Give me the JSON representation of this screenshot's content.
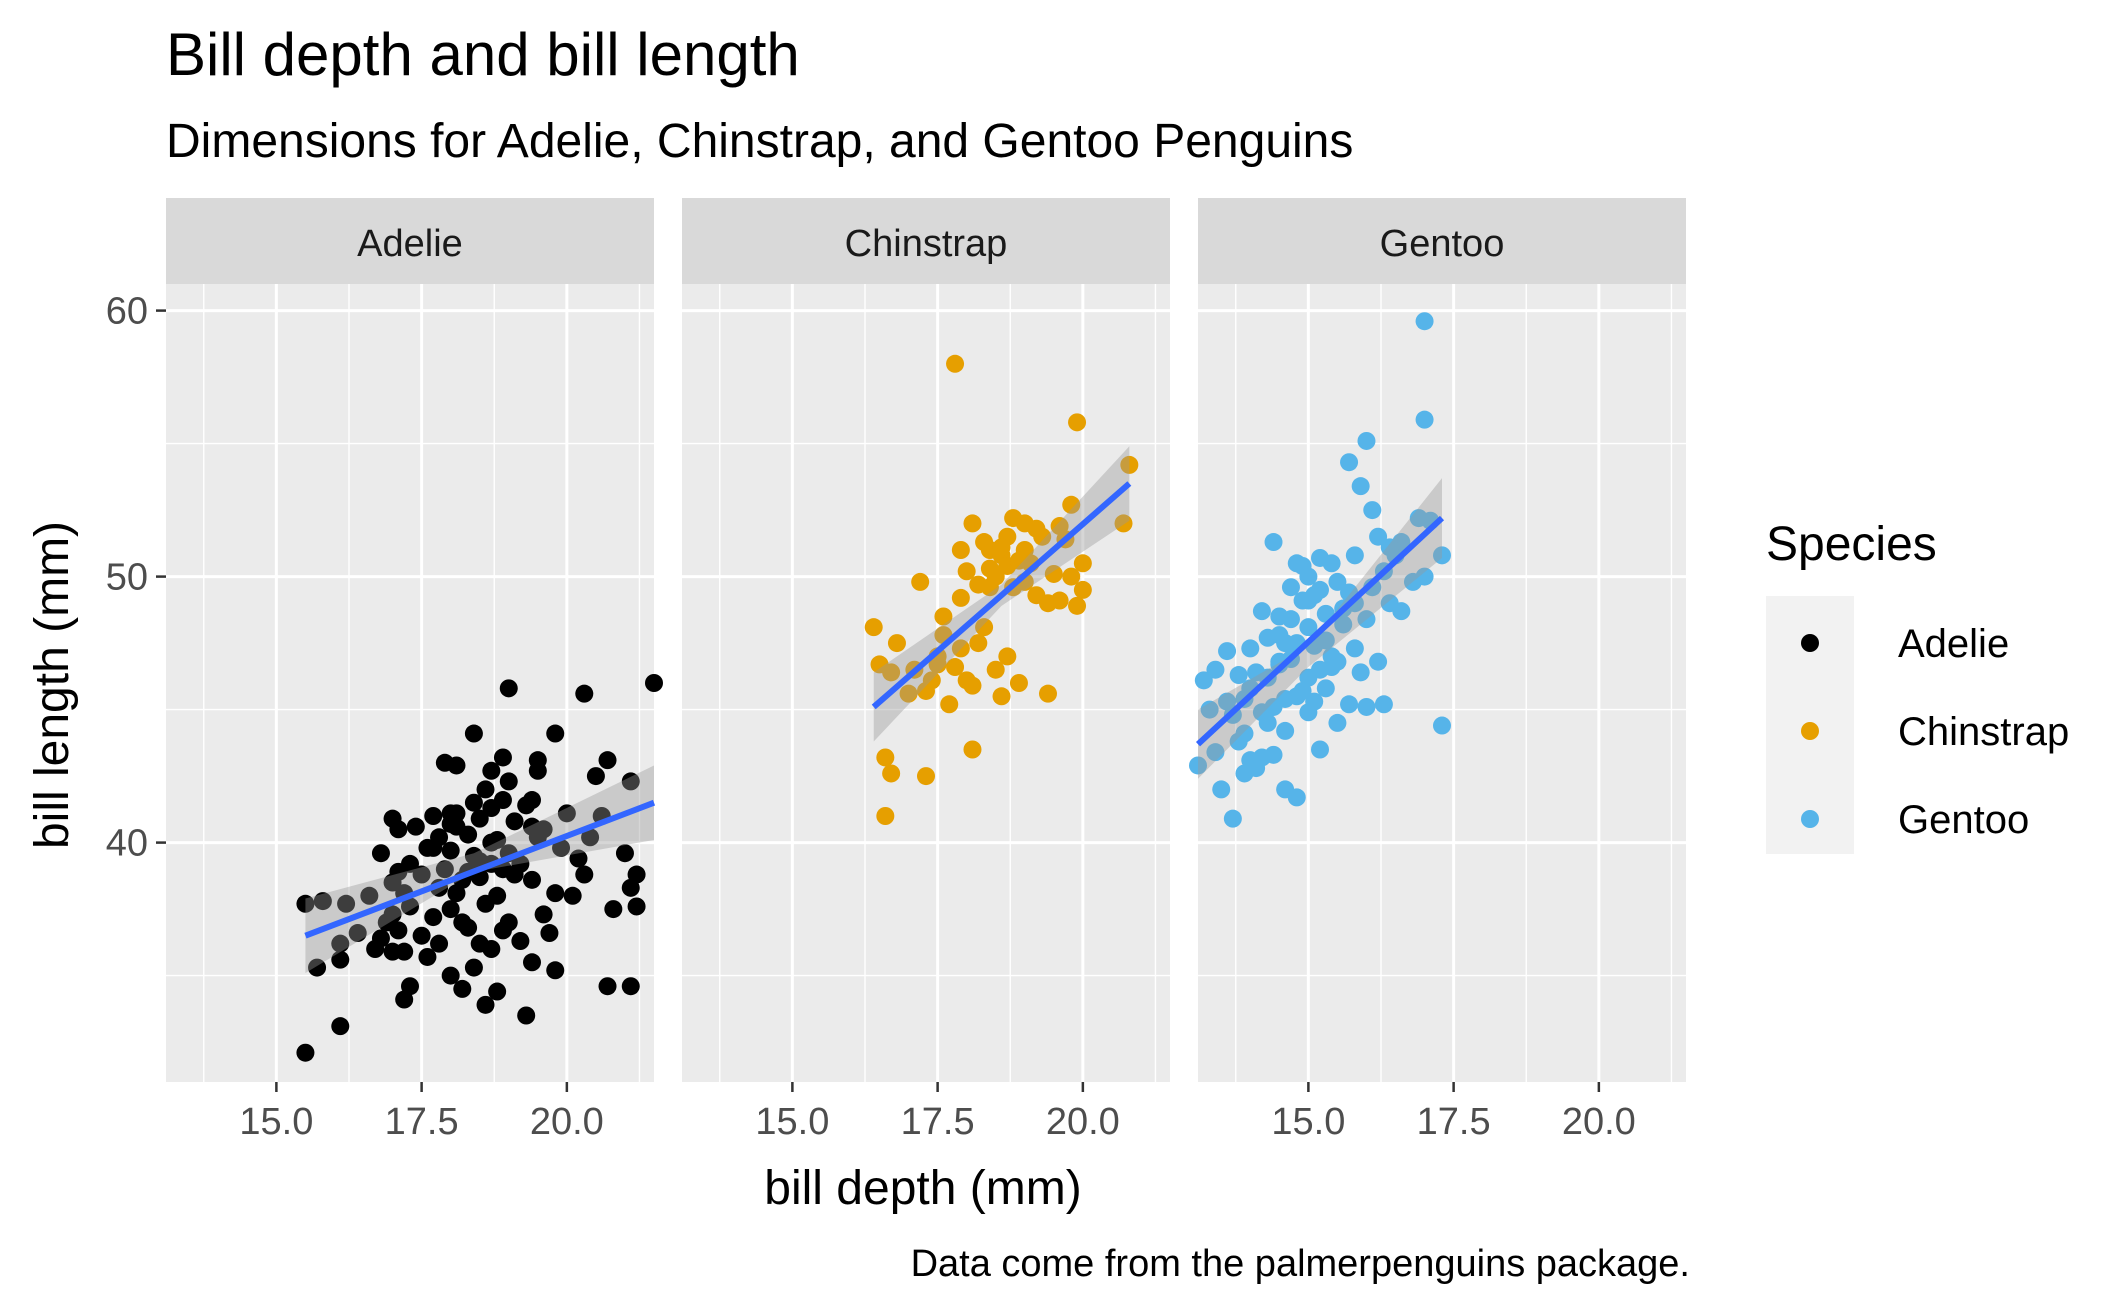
{
  "chart_data": {
    "type": "scatter",
    "title": "Bill depth and bill length",
    "subtitle": "Dimensions for Adelie, Chinstrap, and Gentoo Penguins",
    "caption": "Data come from the palmerpenguins package.",
    "xlabel": "bill depth (mm)",
    "ylabel": "bill length (mm)",
    "xlim": [
      13.1,
      21.5
    ],
    "ylim": [
      31.0,
      61.0
    ],
    "x_ticks": [
      "15.0",
      "17.5",
      "20.0"
    ],
    "x_tick_values": [
      15.0,
      17.5,
      20.0
    ],
    "y_ticks": [
      "40",
      "50",
      "60"
    ],
    "y_tick_values": [
      40,
      50,
      60
    ],
    "grid": true,
    "legend": {
      "title": "Species",
      "placement": "right",
      "entries": [
        "Adelie",
        "Chinstrap",
        "Gentoo"
      ]
    },
    "colors": {
      "Adelie": "#000000",
      "Chinstrap": "#E69F00",
      "Gentoo": "#56B4E9",
      "fit_line": "#3366FF",
      "ribbon": "#999999",
      "panel_bg": "#EBEBEB",
      "strip_bg": "#D9D9D9"
    },
    "series": [
      {
        "name": "Adelie",
        "fit": {
          "x": [
            15.5,
            21.5
          ],
          "y": [
            36.5,
            41.5
          ],
          "se_x": [
            15.5,
            18.4,
            21.5
          ],
          "se_upper": [
            37.9,
            39.6,
            42.9
          ],
          "se_lower": [
            35.1,
            38.9,
            40.1
          ]
        },
        "points": [
          [
            15.5,
            32.1
          ],
          [
            15.7,
            35.3
          ],
          [
            15.8,
            37.8
          ],
          [
            16.1,
            33.1
          ],
          [
            16.1,
            35.6
          ],
          [
            16.1,
            36.2
          ],
          [
            16.2,
            37.7
          ],
          [
            16.4,
            36.6
          ],
          [
            16.6,
            38.0
          ],
          [
            16.7,
            36.0
          ],
          [
            16.8,
            36.4
          ],
          [
            16.8,
            39.6
          ],
          [
            16.9,
            37.0
          ],
          [
            17.0,
            35.9
          ],
          [
            17.0,
            37.3
          ],
          [
            17.0,
            38.5
          ],
          [
            17.0,
            40.9
          ],
          [
            17.1,
            36.7
          ],
          [
            17.1,
            38.9
          ],
          [
            17.1,
            40.5
          ],
          [
            17.2,
            34.1
          ],
          [
            17.2,
            35.9
          ],
          [
            17.2,
            38.1
          ],
          [
            17.3,
            34.6
          ],
          [
            17.3,
            37.6
          ],
          [
            17.3,
            39.2
          ],
          [
            17.4,
            40.6
          ],
          [
            17.5,
            36.5
          ],
          [
            17.5,
            38.8
          ],
          [
            17.6,
            35.7
          ],
          [
            17.6,
            39.8
          ],
          [
            17.7,
            37.2
          ],
          [
            17.7,
            41.0
          ],
          [
            17.8,
            36.2
          ],
          [
            17.8,
            38.3
          ],
          [
            17.8,
            40.2
          ],
          [
            17.9,
            39.0
          ],
          [
            17.9,
            43.0
          ],
          [
            18.0,
            35.0
          ],
          [
            18.0,
            37.5
          ],
          [
            18.0,
            39.7
          ],
          [
            18.1,
            40.6
          ],
          [
            18.1,
            41.1
          ],
          [
            18.2,
            34.5
          ],
          [
            18.2,
            37.0
          ],
          [
            18.2,
            38.6
          ],
          [
            18.3,
            36.8
          ],
          [
            18.3,
            40.3
          ],
          [
            18.4,
            44.1
          ],
          [
            18.4,
            35.3
          ],
          [
            18.4,
            39.5
          ],
          [
            18.4,
            41.5
          ],
          [
            18.5,
            36.2
          ],
          [
            18.5,
            38.7
          ],
          [
            18.5,
            40.9
          ],
          [
            18.6,
            33.9
          ],
          [
            18.6,
            37.7
          ],
          [
            18.6,
            42.0
          ],
          [
            18.7,
            36.0
          ],
          [
            18.7,
            39.2
          ],
          [
            18.7,
            41.3
          ],
          [
            18.7,
            42.7
          ],
          [
            18.8,
            34.4
          ],
          [
            18.8,
            38.0
          ],
          [
            18.8,
            40.1
          ],
          [
            18.9,
            36.7
          ],
          [
            18.9,
            41.6
          ],
          [
            18.9,
            43.2
          ],
          [
            19.0,
            37.0
          ],
          [
            19.0,
            39.6
          ],
          [
            19.0,
            42.3
          ],
          [
            19.1,
            38.8
          ],
          [
            19.1,
            40.8
          ],
          [
            19.2,
            36.3
          ],
          [
            19.2,
            39.2
          ],
          [
            19.3,
            41.4
          ],
          [
            19.4,
            35.5
          ],
          [
            19.4,
            38.6
          ],
          [
            19.4,
            40.6
          ],
          [
            19.5,
            42.7
          ],
          [
            19.6,
            37.3
          ],
          [
            19.6,
            40.5
          ],
          [
            19.7,
            36.6
          ],
          [
            19.8,
            35.2
          ],
          [
            19.8,
            38.1
          ],
          [
            19.9,
            39.8
          ],
          [
            20.0,
            41.1
          ],
          [
            20.1,
            38.0
          ],
          [
            20.2,
            39.4
          ],
          [
            20.3,
            38.8
          ],
          [
            20.6,
            41.0
          ],
          [
            20.8,
            37.5
          ],
          [
            21.0,
            39.6
          ],
          [
            21.1,
            38.3
          ],
          [
            21.2,
            37.6
          ],
          [
            15.5,
            37.7
          ],
          [
            19.0,
            45.8
          ],
          [
            19.3,
            33.5
          ],
          [
            19.5,
            43.1
          ],
          [
            19.4,
            41.6
          ],
          [
            18.1,
            42.9
          ],
          [
            18.0,
            41.1
          ],
          [
            18.9,
            39.0
          ],
          [
            17.7,
            39.8
          ],
          [
            18.5,
            39.3
          ],
          [
            18.3,
            38.9
          ],
          [
            18.0,
            40.7
          ],
          [
            18.7,
            40.0
          ],
          [
            19.5,
            40.2
          ],
          [
            18.1,
            38.1
          ],
          [
            20.5,
            42.5
          ],
          [
            20.7,
            43.1
          ],
          [
            20.7,
            34.6
          ],
          [
            21.1,
            34.6
          ],
          [
            21.5,
            46.0
          ],
          [
            20.3,
            45.6
          ],
          [
            21.1,
            42.3
          ],
          [
            20.4,
            40.2
          ],
          [
            19.8,
            44.1
          ],
          [
            21.2,
            38.8
          ]
        ]
      },
      {
        "name": "Chinstrap",
        "fit": {
          "x": [
            16.4,
            20.8
          ],
          "y": [
            45.1,
            53.5
          ],
          "se_x": [
            16.4,
            18.6,
            20.8
          ],
          "se_upper": [
            46.4,
            49.7,
            54.9
          ],
          "se_lower": [
            43.8,
            48.9,
            52.1
          ]
        },
        "points": [
          [
            16.4,
            48.1
          ],
          [
            16.5,
            46.7
          ],
          [
            16.6,
            43.2
          ],
          [
            16.6,
            41.0
          ],
          [
            16.7,
            42.6
          ],
          [
            16.7,
            46.4
          ],
          [
            16.8,
            47.5
          ],
          [
            17.0,
            45.6
          ],
          [
            17.1,
            46.5
          ],
          [
            17.2,
            49.8
          ],
          [
            17.3,
            42.5
          ],
          [
            17.3,
            45.7
          ],
          [
            17.4,
            46.1
          ],
          [
            17.5,
            47.0
          ],
          [
            17.6,
            48.5
          ],
          [
            17.7,
            45.2
          ],
          [
            17.8,
            46.6
          ],
          [
            17.8,
            58.0
          ],
          [
            17.9,
            49.2
          ],
          [
            17.9,
            51.0
          ],
          [
            18.0,
            46.1
          ],
          [
            18.0,
            50.2
          ],
          [
            18.1,
            43.5
          ],
          [
            18.1,
            45.9
          ],
          [
            18.1,
            52.0
          ],
          [
            18.2,
            47.5
          ],
          [
            18.3,
            51.3
          ],
          [
            18.4,
            49.6
          ],
          [
            18.4,
            51.0
          ],
          [
            18.5,
            50.0
          ],
          [
            18.5,
            46.5
          ],
          [
            18.6,
            45.5
          ],
          [
            18.6,
            50.8
          ],
          [
            18.7,
            47.0
          ],
          [
            18.7,
            50.4
          ],
          [
            18.7,
            51.5
          ],
          [
            18.8,
            52.2
          ],
          [
            18.8,
            49.6
          ],
          [
            18.9,
            50.6
          ],
          [
            18.9,
            46.0
          ],
          [
            19.0,
            51.0
          ],
          [
            19.0,
            49.8
          ],
          [
            19.0,
            52.0
          ],
          [
            19.1,
            50.5
          ],
          [
            19.2,
            49.3
          ],
          [
            19.3,
            51.5
          ],
          [
            19.4,
            45.6
          ],
          [
            19.4,
            49.0
          ],
          [
            19.5,
            50.1
          ],
          [
            19.6,
            49.1
          ],
          [
            19.6,
            51.9
          ],
          [
            19.7,
            51.4
          ],
          [
            19.8,
            50.0
          ],
          [
            19.8,
            52.7
          ],
          [
            19.9,
            48.9
          ],
          [
            19.9,
            55.8
          ],
          [
            20.0,
            50.5
          ],
          [
            20.0,
            49.5
          ],
          [
            20.7,
            52.0
          ],
          [
            20.8,
            54.2
          ],
          [
            17.5,
            46.7
          ],
          [
            18.3,
            48.1
          ],
          [
            18.6,
            51.1
          ],
          [
            19.2,
            51.8
          ],
          [
            17.9,
            47.3
          ],
          [
            18.2,
            49.7
          ],
          [
            18.4,
            50.3
          ],
          [
            17.6,
            47.8
          ]
        ]
      },
      {
        "name": "Gentoo",
        "fit": {
          "x": [
            13.1,
            17.3
          ],
          "y": [
            43.7,
            52.2
          ],
          "se_x": [
            13.1,
            15.0,
            17.3
          ],
          "se_upper": [
            45.0,
            47.4,
            53.7
          ],
          "se_lower": [
            42.4,
            46.6,
            50.7
          ]
        },
        "points": [
          [
            13.1,
            42.9
          ],
          [
            13.2,
            46.1
          ],
          [
            13.3,
            45.0
          ],
          [
            13.4,
            43.4
          ],
          [
            13.4,
            46.5
          ],
          [
            13.5,
            42.0
          ],
          [
            13.6,
            45.3
          ],
          [
            13.6,
            47.2
          ],
          [
            13.7,
            40.9
          ],
          [
            13.7,
            44.8
          ],
          [
            13.8,
            43.8
          ],
          [
            13.8,
            46.3
          ],
          [
            13.9,
            42.6
          ],
          [
            13.9,
            44.1
          ],
          [
            14.0,
            47.3
          ],
          [
            14.0,
            45.8
          ],
          [
            14.1,
            42.8
          ],
          [
            14.1,
            46.4
          ],
          [
            14.2,
            43.2
          ],
          [
            14.2,
            44.9
          ],
          [
            14.2,
            48.7
          ],
          [
            14.3,
            46.2
          ],
          [
            14.3,
            47.7
          ],
          [
            14.4,
            43.3
          ],
          [
            14.4,
            45.1
          ],
          [
            14.4,
            51.3
          ],
          [
            14.5,
            46.8
          ],
          [
            14.5,
            48.5
          ],
          [
            14.6,
            42.0
          ],
          [
            14.6,
            44.2
          ],
          [
            14.6,
            45.4
          ],
          [
            14.7,
            46.9
          ],
          [
            14.7,
            48.4
          ],
          [
            14.8,
            41.7
          ],
          [
            14.8,
            45.5
          ],
          [
            14.8,
            47.5
          ],
          [
            14.9,
            49.1
          ],
          [
            15.0,
            44.9
          ],
          [
            15.0,
            46.2
          ],
          [
            15.0,
            48.1
          ],
          [
            15.0,
            50.0
          ],
          [
            15.1,
            45.3
          ],
          [
            15.1,
            47.4
          ],
          [
            15.2,
            43.5
          ],
          [
            15.2,
            46.5
          ],
          [
            15.2,
            49.5
          ],
          [
            15.3,
            45.8
          ],
          [
            15.3,
            48.6
          ],
          [
            15.4,
            47.0
          ],
          [
            15.4,
            50.5
          ],
          [
            15.5,
            44.5
          ],
          [
            15.5,
            46.8
          ],
          [
            15.6,
            48.2
          ],
          [
            15.7,
            45.2
          ],
          [
            15.7,
            49.4
          ],
          [
            15.8,
            47.3
          ],
          [
            15.8,
            50.8
          ],
          [
            15.9,
            46.4
          ],
          [
            16.0,
            48.4
          ],
          [
            16.0,
            45.1
          ],
          [
            16.1,
            49.6
          ],
          [
            16.1,
            52.5
          ],
          [
            16.2,
            46.8
          ],
          [
            16.2,
            51.5
          ],
          [
            16.3,
            45.2
          ],
          [
            16.3,
            50.2
          ],
          [
            16.4,
            49.0
          ],
          [
            16.5,
            50.8
          ],
          [
            16.6,
            48.7
          ],
          [
            16.8,
            49.8
          ],
          [
            17.0,
            50.0
          ],
          [
            17.0,
            59.6
          ],
          [
            17.0,
            55.9
          ],
          [
            17.1,
            52.1
          ],
          [
            17.3,
            44.4
          ],
          [
            17.3,
            50.8
          ],
          [
            15.7,
            54.3
          ],
          [
            15.9,
            53.4
          ],
          [
            16.0,
            55.1
          ],
          [
            16.6,
            51.3
          ],
          [
            14.8,
            50.5
          ],
          [
            15.0,
            49.1
          ],
          [
            14.5,
            46.7
          ],
          [
            15.5,
            49.8
          ],
          [
            15.1,
            49.3
          ],
          [
            14.6,
            47.5
          ],
          [
            13.9,
            45.4
          ],
          [
            14.9,
            45.7
          ],
          [
            15.3,
            47.6
          ],
          [
            15.6,
            48.8
          ],
          [
            14.3,
            44.5
          ],
          [
            14.7,
            49.6
          ],
          [
            15.2,
            50.7
          ],
          [
            16.4,
            51.1
          ],
          [
            16.9,
            52.2
          ],
          [
            14.0,
            43.1
          ],
          [
            14.9,
            50.4
          ],
          [
            15.8,
            49.0
          ],
          [
            15.4,
            46.6
          ],
          [
            14.5,
            47.8
          ]
        ]
      }
    ]
  }
}
